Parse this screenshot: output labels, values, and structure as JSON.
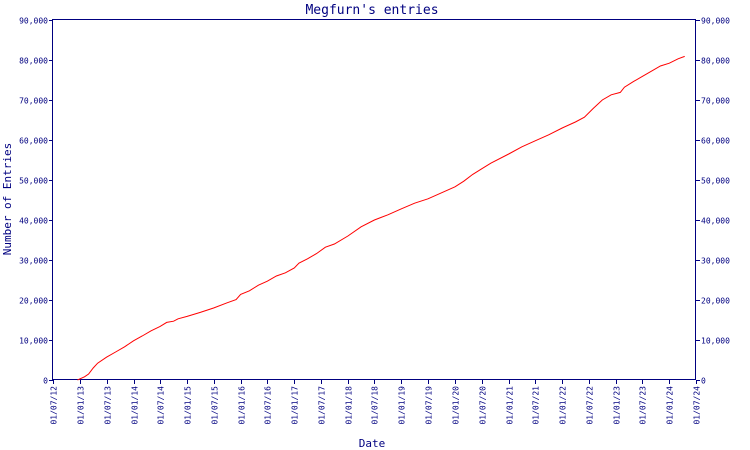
{
  "chart_data": {
    "type": "line",
    "title": "Megfurn's entries",
    "xlabel": "Date",
    "ylabel": "Number of Entries",
    "ylim": [
      0,
      90000
    ],
    "xlim": [
      "2012-07-01",
      "2024-07-01"
    ],
    "y_ticks": [
      {
        "value": 0,
        "label": "0"
      },
      {
        "value": 10000,
        "label": "10,000"
      },
      {
        "value": 20000,
        "label": "20,000"
      },
      {
        "value": 30000,
        "label": "30,000"
      },
      {
        "value": 40000,
        "label": "40,000"
      },
      {
        "value": 50000,
        "label": "50,000"
      },
      {
        "value": 60000,
        "label": "60,000"
      },
      {
        "value": 70000,
        "label": "70,000"
      },
      {
        "value": 80000,
        "label": "80,000"
      },
      {
        "value": 90000,
        "label": "90,000"
      }
    ],
    "x_ticks": [
      {
        "date": "2012-07-01",
        "label": "01/07/12"
      },
      {
        "date": "2013-01-01",
        "label": "01/01/13"
      },
      {
        "date": "2013-07-01",
        "label": "01/07/13"
      },
      {
        "date": "2014-01-01",
        "label": "01/01/14"
      },
      {
        "date": "2014-07-01",
        "label": "01/07/14"
      },
      {
        "date": "2015-01-01",
        "label": "01/01/15"
      },
      {
        "date": "2015-07-01",
        "label": "01/07/15"
      },
      {
        "date": "2016-01-01",
        "label": "01/01/16"
      },
      {
        "date": "2016-07-01",
        "label": "01/07/16"
      },
      {
        "date": "2017-01-01",
        "label": "01/01/17"
      },
      {
        "date": "2017-07-01",
        "label": "01/07/17"
      },
      {
        "date": "2018-01-01",
        "label": "01/01/18"
      },
      {
        "date": "2018-07-01",
        "label": "01/07/18"
      },
      {
        "date": "2019-01-01",
        "label": "01/01/19"
      },
      {
        "date": "2019-07-01",
        "label": "01/07/19"
      },
      {
        "date": "2020-01-01",
        "label": "01/01/20"
      },
      {
        "date": "2020-07-01",
        "label": "01/07/20"
      },
      {
        "date": "2021-01-01",
        "label": "01/01/21"
      },
      {
        "date": "2021-07-01",
        "label": "01/07/21"
      },
      {
        "date": "2022-01-01",
        "label": "01/01/22"
      },
      {
        "date": "2022-07-01",
        "label": "01/07/22"
      },
      {
        "date": "2023-01-01",
        "label": "01/01/23"
      },
      {
        "date": "2023-07-01",
        "label": "01/07/23"
      },
      {
        "date": "2024-01-01",
        "label": "01/01/24"
      },
      {
        "date": "2024-07-01",
        "label": "01/07/24"
      }
    ],
    "grid": false,
    "legend": "none",
    "series": [
      {
        "color": "#ff0000",
        "points": [
          {
            "x": "2012-12-15",
            "y": 0
          },
          {
            "x": "2013-01-01",
            "y": 300
          },
          {
            "x": "2013-02-01",
            "y": 800
          },
          {
            "x": "2013-03-01",
            "y": 1500
          },
          {
            "x": "2013-04-01",
            "y": 3000
          },
          {
            "x": "2013-05-01",
            "y": 4200
          },
          {
            "x": "2013-07-01",
            "y": 5700
          },
          {
            "x": "2013-09-01",
            "y": 7000
          },
          {
            "x": "2013-11-01",
            "y": 8300
          },
          {
            "x": "2014-01-01",
            "y": 9800
          },
          {
            "x": "2014-03-01",
            "y": 11000
          },
          {
            "x": "2014-05-01",
            "y": 12300
          },
          {
            "x": "2014-07-01",
            "y": 13400
          },
          {
            "x": "2014-08-15",
            "y": 14400
          },
          {
            "x": "2014-10-01",
            "y": 14700
          },
          {
            "x": "2014-11-01",
            "y": 15300
          },
          {
            "x": "2015-01-01",
            "y": 15900
          },
          {
            "x": "2015-04-01",
            "y": 16900
          },
          {
            "x": "2015-07-01",
            "y": 18000
          },
          {
            "x": "2015-10-01",
            "y": 19300
          },
          {
            "x": "2015-12-01",
            "y": 20100
          },
          {
            "x": "2016-01-01",
            "y": 21400
          },
          {
            "x": "2016-03-01",
            "y": 22300
          },
          {
            "x": "2016-05-01",
            "y": 23700
          },
          {
            "x": "2016-07-01",
            "y": 24700
          },
          {
            "x": "2016-09-01",
            "y": 26000
          },
          {
            "x": "2016-11-01",
            "y": 26800
          },
          {
            "x": "2017-01-01",
            "y": 28000
          },
          {
            "x": "2017-02-01",
            "y": 29200
          },
          {
            "x": "2017-04-01",
            "y": 30300
          },
          {
            "x": "2017-06-01",
            "y": 31600
          },
          {
            "x": "2017-08-01",
            "y": 33200
          },
          {
            "x": "2017-10-01",
            "y": 34000
          },
          {
            "x": "2018-01-01",
            "y": 36000
          },
          {
            "x": "2018-04-01",
            "y": 38300
          },
          {
            "x": "2018-07-01",
            "y": 40000
          },
          {
            "x": "2018-10-01",
            "y": 41300
          },
          {
            "x": "2019-01-01",
            "y": 42800
          },
          {
            "x": "2019-04-01",
            "y": 44200
          },
          {
            "x": "2019-07-01",
            "y": 45300
          },
          {
            "x": "2019-10-01",
            "y": 46800
          },
          {
            "x": "2020-01-01",
            "y": 48300
          },
          {
            "x": "2020-03-01",
            "y": 49700
          },
          {
            "x": "2020-05-01",
            "y": 51400
          },
          {
            "x": "2020-07-01",
            "y": 52800
          },
          {
            "x": "2020-09-01",
            "y": 54200
          },
          {
            "x": "2021-01-01",
            "y": 56500
          },
          {
            "x": "2021-04-01",
            "y": 58300
          },
          {
            "x": "2021-07-01",
            "y": 59800
          },
          {
            "x": "2021-10-01",
            "y": 61300
          },
          {
            "x": "2022-01-01",
            "y": 63000
          },
          {
            "x": "2022-04-01",
            "y": 64500
          },
          {
            "x": "2022-06-01",
            "y": 65700
          },
          {
            "x": "2022-08-01",
            "y": 67900
          },
          {
            "x": "2022-10-01",
            "y": 70000
          },
          {
            "x": "2022-12-01",
            "y": 71300
          },
          {
            "x": "2023-02-01",
            "y": 71900
          },
          {
            "x": "2023-03-01",
            "y": 73200
          },
          {
            "x": "2023-05-01",
            "y": 74600
          },
          {
            "x": "2023-07-01",
            "y": 75900
          },
          {
            "x": "2023-09-01",
            "y": 77200
          },
          {
            "x": "2023-11-01",
            "y": 78500
          },
          {
            "x": "2024-01-01",
            "y": 79200
          },
          {
            "x": "2024-03-01",
            "y": 80300
          },
          {
            "x": "2024-04-15",
            "y": 80900
          }
        ]
      }
    ]
  }
}
